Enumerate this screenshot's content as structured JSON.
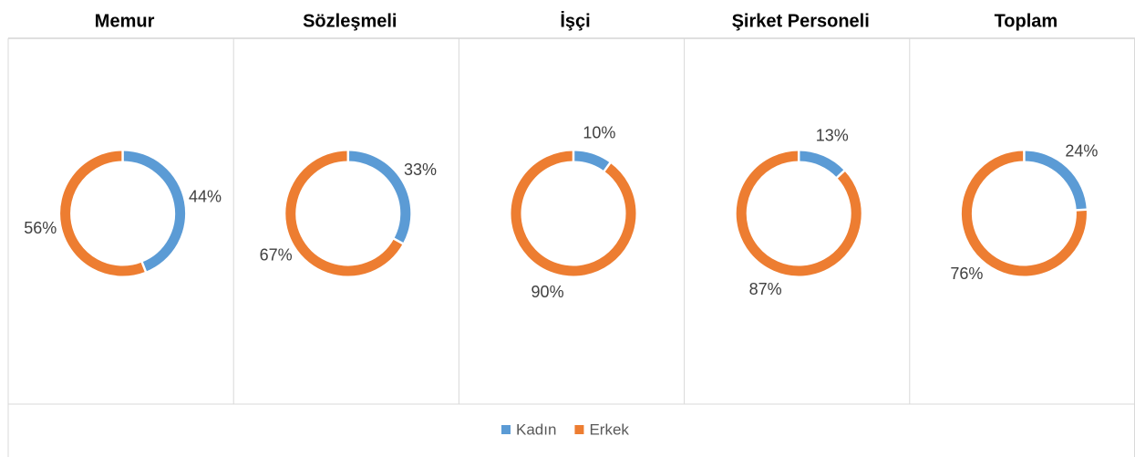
{
  "chart_data": [
    {
      "type": "donut",
      "title": "Memur",
      "values": [
        44,
        56
      ],
      "value_labels": [
        "44%",
        "56%"
      ]
    },
    {
      "type": "donut",
      "title": "Sözleşmeli",
      "values": [
        33,
        67
      ],
      "value_labels": [
        "33%",
        "67%"
      ]
    },
    {
      "type": "donut",
      "title": "İşçi",
      "values": [
        10,
        90
      ],
      "value_labels": [
        "10%",
        "90%"
      ]
    },
    {
      "type": "donut",
      "title": "Şirket Personeli",
      "values": [
        13,
        87
      ],
      "value_labels": [
        "13%",
        "87%"
      ]
    },
    {
      "type": "donut",
      "title": "Toplam",
      "values": [
        24,
        76
      ],
      "value_labels": [
        "24%",
        "76%"
      ]
    }
  ],
  "legend": {
    "names": [
      "Kadın",
      "Erkek"
    ],
    "colors": [
      "#5b9bd5",
      "#ed7d31"
    ]
  }
}
